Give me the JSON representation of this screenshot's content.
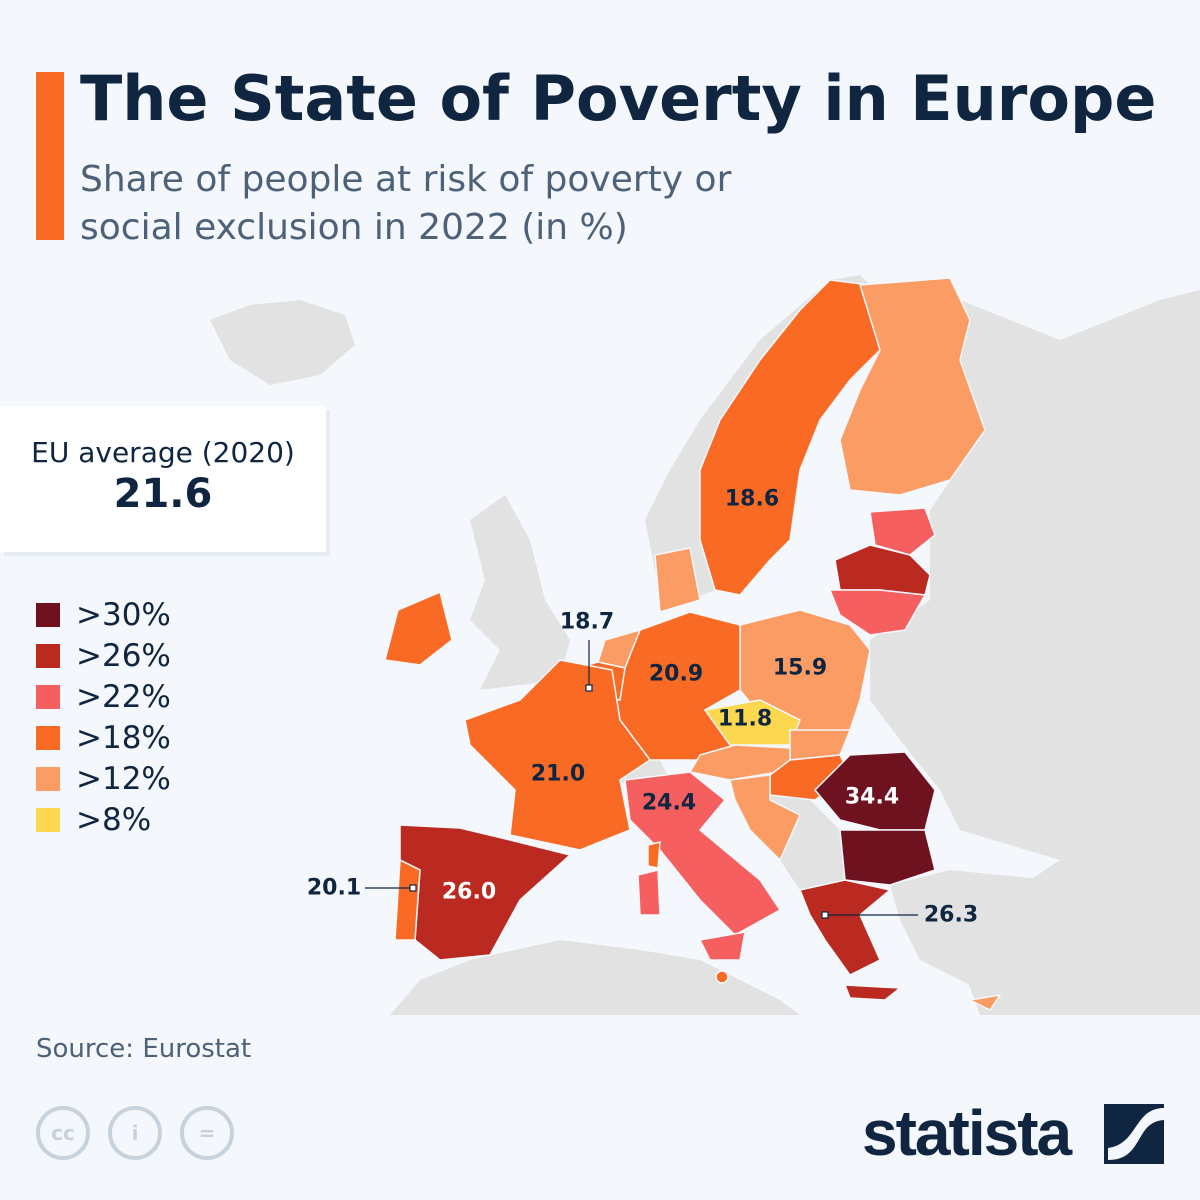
{
  "header": {
    "title": "The State of Poverty in Europe",
    "subtitle": "Share of people at risk of poverty or social exclusion in 2022 (in %)"
  },
  "eu_average": {
    "label": "EU average (2020)",
    "value": "21.6"
  },
  "legend": [
    {
      "label": ">30%",
      "color": "#6f1220"
    },
    {
      "label": ">26%",
      "color": "#bb2a20"
    },
    {
      "label": ">22%",
      "color": "#f55f5f"
    },
    {
      "label": ">18%",
      "color": "#f96b24"
    },
    {
      "label": ">12%",
      "color": "#fa9c64"
    },
    {
      "label": ">8%",
      "color": "#fbd84f"
    }
  ],
  "map_labels": [
    {
      "text": "18.6",
      "country": "Sweden"
    },
    {
      "text": "18.7",
      "country": "Belgium"
    },
    {
      "text": "20.9",
      "country": "Germany"
    },
    {
      "text": "15.9",
      "country": "Poland"
    },
    {
      "text": "11.8",
      "country": "Czechia"
    },
    {
      "text": "21.0",
      "country": "France"
    },
    {
      "text": "24.4",
      "country": "Italy"
    },
    {
      "text": "34.4",
      "country": "Romania"
    },
    {
      "text": "26.0",
      "country": "Spain"
    },
    {
      "text": "20.1",
      "country": "Portugal"
    },
    {
      "text": "26.3",
      "country": "Greece"
    }
  ],
  "colors": {
    "land_other": "#e2e2e2",
    "accent": "#f96b24",
    "text_dark": "#0f2540"
  },
  "footer": {
    "source": "Source: Eurostat",
    "brand": "statista",
    "license_icons": [
      "cc-icon",
      "attribution-icon",
      "no-derivatives-icon"
    ]
  }
}
